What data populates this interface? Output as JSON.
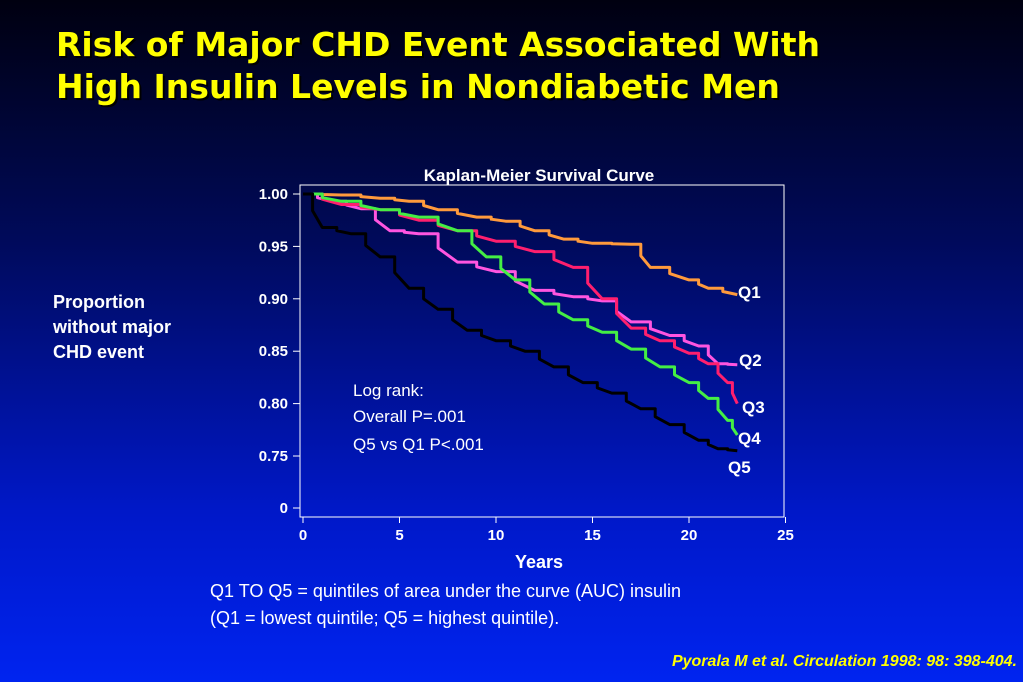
{
  "slide": {
    "title_line1": "Risk of Major CHD Event Associated With",
    "title_line2": "High Insulin Levels in Nondiabetic Men",
    "ylabel_lines": [
      "Proportion",
      "without major",
      "CHD event"
    ],
    "footnote_line1": "Q1 TO Q5 = quintiles of area under the curve (AUC) insulin",
    "footnote_line2": "(Q1 = lowest quintile; Q5 = highest quintile).",
    "citation": "Pyorala M et al. Circulation 1998: 98: 398-404."
  },
  "chart_data": {
    "type": "line",
    "title": "Kaplan-Meier Survival Curve",
    "xlabel": "Years",
    "ylabel": "Proportion without major CHD event",
    "xlim": [
      0,
      25
    ],
    "x_ticks": [
      "0",
      "5",
      "10",
      "15",
      "20",
      "25"
    ],
    "y_ticks": [
      "0",
      "0.75",
      "0.80",
      "0.85",
      "0.90",
      "0.95",
      "1.00"
    ],
    "y_axis_break": "0 to 0.75",
    "annotation_lines": [
      "Log rank:",
      "Overall P=.001",
      "Q5 vs Q1 P<.001"
    ],
    "series": [
      {
        "name": "Q1",
        "color": "#ff9a3c",
        "x": [
          0,
          2,
          4,
          5.5,
          7,
          9,
          10.5,
          12,
          13.5,
          15,
          17,
          18,
          20,
          21,
          22.5
        ],
        "y": [
          1.0,
          0.999,
          0.996,
          0.993,
          0.985,
          0.978,
          0.974,
          0.965,
          0.957,
          0.953,
          0.952,
          0.93,
          0.918,
          0.91,
          0.904
        ]
      },
      {
        "name": "Q2",
        "color": "#ff55e0",
        "x": [
          0,
          1.5,
          3,
          4.5,
          6,
          8,
          10,
          12,
          14,
          15.5,
          17,
          19,
          20.5,
          21.5,
          22.5
        ],
        "y": [
          1.0,
          0.993,
          0.986,
          0.965,
          0.962,
          0.935,
          0.926,
          0.908,
          0.902,
          0.898,
          0.878,
          0.865,
          0.855,
          0.838,
          0.837
        ]
      },
      {
        "name": "Q3",
        "color": "#ff1f6e",
        "x": [
          0,
          2,
          4,
          6,
          8,
          10,
          12,
          14,
          15.5,
          17,
          18.5,
          20,
          21,
          22,
          22.5
        ],
        "y": [
          1.0,
          0.99,
          0.985,
          0.975,
          0.965,
          0.955,
          0.945,
          0.93,
          0.9,
          0.872,
          0.86,
          0.848,
          0.838,
          0.82,
          0.8
        ]
      },
      {
        "name": "Q4",
        "color": "#44ee44",
        "x": [
          0,
          2,
          4,
          6,
          8,
          9.5,
          11,
          12.5,
          14,
          15.5,
          17,
          18.5,
          20,
          21,
          22,
          22.5
        ],
        "y": [
          1.0,
          0.993,
          0.985,
          0.978,
          0.965,
          0.94,
          0.918,
          0.895,
          0.88,
          0.868,
          0.852,
          0.835,
          0.82,
          0.805,
          0.784,
          0.77
        ]
      },
      {
        "name": "Q5",
        "color": "#000000",
        "x": [
          0,
          1,
          2.5,
          4,
          5.5,
          7,
          8.5,
          10,
          11.5,
          13,
          14.5,
          16,
          17.5,
          19,
          20.5,
          21.5,
          22.5
        ],
        "y": [
          1.0,
          0.968,
          0.962,
          0.94,
          0.91,
          0.89,
          0.87,
          0.86,
          0.85,
          0.835,
          0.82,
          0.81,
          0.795,
          0.78,
          0.765,
          0.757,
          0.755
        ]
      }
    ]
  }
}
